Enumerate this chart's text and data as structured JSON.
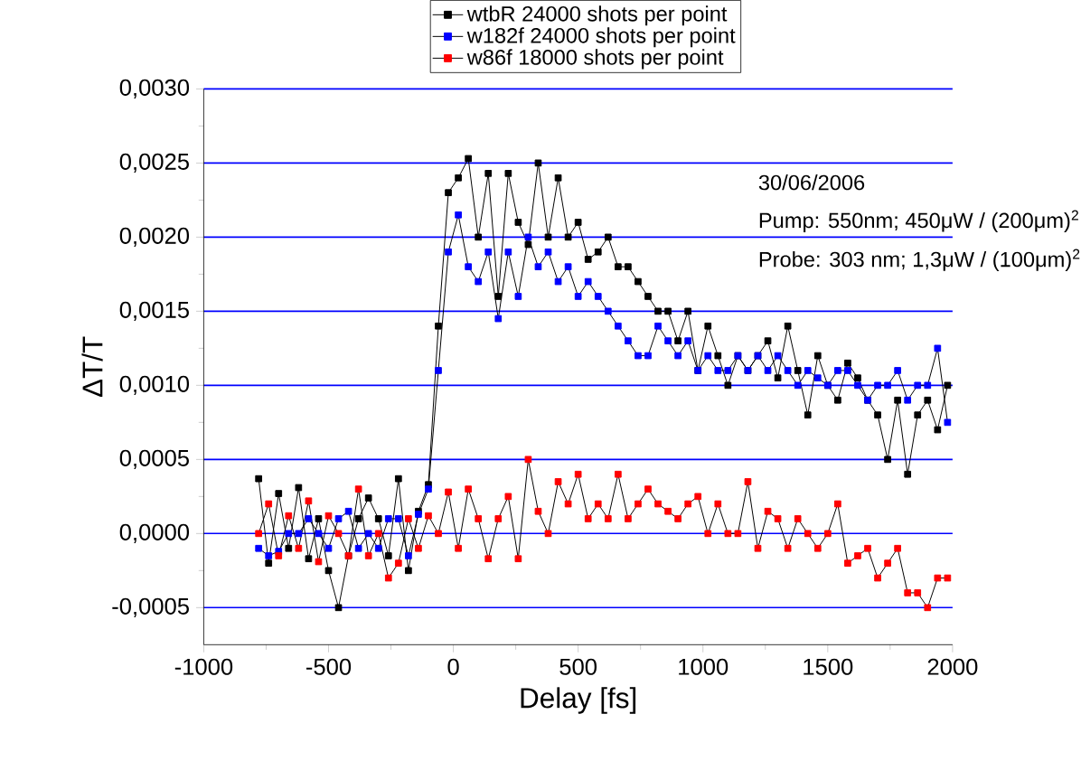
{
  "chart_data": {
    "type": "line",
    "xlabel": "Delay [fs]",
    "ylabel": "ΔT/T",
    "x": [
      -780,
      -740,
      -700,
      -660,
      -620,
      -580,
      -540,
      -500,
      -460,
      -420,
      -380,
      -340,
      -300,
      -260,
      -220,
      -180,
      -140,
      -100,
      -60,
      -20,
      20,
      60,
      100,
      140,
      180,
      220,
      260,
      300,
      340,
      380,
      420,
      460,
      500,
      540,
      580,
      620,
      660,
      700,
      740,
      780,
      820,
      860,
      900,
      940,
      980,
      1020,
      1060,
      1100,
      1140,
      1180,
      1220,
      1260,
      1300,
      1340,
      1380,
      1420,
      1460,
      1500,
      1540,
      1580,
      1620,
      1660,
      1700,
      1740,
      1780,
      1820,
      1860,
      1900,
      1940,
      1980
    ],
    "series": [
      {
        "name": "wtbR 24000 shots per point",
        "color": "#000000",
        "values": [
          0.00037,
          -0.0002,
          0.00027,
          -0.0001,
          0.00031,
          -0.00017,
          0.0001,
          -0.00025,
          -0.0005,
          -0.00015,
          0.0001,
          0.00024,
          0.0001,
          -0.00015,
          0.00037,
          -0.00025,
          0.00015,
          0.00033,
          0.0014,
          0.0023,
          0.0024,
          0.00253,
          0.002,
          0.00243,
          0.0016,
          0.00243,
          0.0021,
          0.00195,
          0.0025,
          0.002,
          0.0024,
          0.002,
          0.0021,
          0.00185,
          0.0019,
          0.002,
          0.0018,
          0.0018,
          0.0017,
          0.0016,
          0.0015,
          0.0015,
          0.0013,
          0.0015,
          0.0011,
          0.0014,
          0.0012,
          0.001,
          0.0012,
          0.0011,
          0.0012,
          0.0013,
          0.00105,
          0.0014,
          0.0011,
          0.0008,
          0.0012,
          0.001,
          0.0009,
          0.00115,
          0.00105,
          0.0009,
          0.0008,
          0.0005,
          0.0009,
          0.0004,
          0.0008,
          0.0009,
          0.0007,
          0.001
        ]
      },
      {
        "name": "w182f 24000 shots per point",
        "color": "#0000ff",
        "values": [
          -0.0001,
          -0.00015,
          -0.00012,
          0.0,
          0.0,
          0.0001,
          0.0,
          -0.0001,
          0.0001,
          0.00015,
          -0.0001,
          0.0,
          -0.0001,
          0.0001,
          0.0001,
          -0.00015,
          0.00013,
          0.0003,
          0.0011,
          0.0019,
          0.00215,
          0.0018,
          0.0017,
          0.0019,
          0.00145,
          0.0019,
          0.0016,
          0.002,
          0.0018,
          0.0019,
          0.0017,
          0.0018,
          0.0016,
          0.0017,
          0.0016,
          0.0015,
          0.0014,
          0.0013,
          0.0012,
          0.0012,
          0.0014,
          0.0013,
          0.0012,
          0.0013,
          0.0011,
          0.0012,
          0.0011,
          0.0011,
          0.0012,
          0.0011,
          0.0012,
          0.0011,
          0.0012,
          0.0011,
          0.001,
          0.0011,
          0.00105,
          0.001,
          0.0011,
          0.0011,
          0.001,
          0.0009,
          0.001,
          0.001,
          0.0011,
          0.0009,
          0.001,
          0.001,
          0.00125,
          0.00075
        ]
      },
      {
        "name": "w86f 18000 shots per point",
        "color": "#ff0000",
        "values": [
          0.0,
          0.0002,
          -0.00015,
          0.00012,
          -0.0001,
          0.00022,
          -0.00019,
          0.00012,
          0.0,
          -0.00015,
          0.0003,
          -0.00015,
          0.0,
          -0.0003,
          -0.0002,
          0.0001,
          -0.0001,
          0.00012,
          0.0,
          0.00028,
          -0.0001,
          0.0003,
          0.0001,
          -0.00017,
          0.0001,
          0.00025,
          -0.00017,
          0.0005,
          0.00015,
          0.0,
          0.00035,
          0.0002,
          0.0004,
          0.0001,
          0.0002,
          0.0001,
          0.0004,
          0.0001,
          0.0002,
          0.0003,
          0.0002,
          0.00015,
          0.0001,
          0.0002,
          0.00025,
          0.0,
          0.0002,
          0.0,
          0.0,
          0.00035,
          -0.0001,
          0.00015,
          0.0001,
          -0.0001,
          0.0001,
          0.0,
          -0.0001,
          0.0,
          0.0002,
          -0.0002,
          -0.00015,
          -0.0001,
          -0.0003,
          -0.0002,
          -0.0001,
          -0.0004,
          -0.0004,
          -0.0005,
          -0.0003,
          -0.0003
        ]
      }
    ],
    "xlim": [
      -1000,
      2000
    ],
    "xticks": [
      -1000,
      -500,
      0,
      500,
      1000,
      1500,
      2000
    ],
    "ylim": [
      -0.00075,
      0.003
    ],
    "yticks": [
      {
        "value": -0.0005,
        "label": "-0,0005"
      },
      {
        "value": 0,
        "label": "0,0000"
      },
      {
        "value": 0.0005,
        "label": "0,0005"
      },
      {
        "value": 0.001,
        "label": "0,0010"
      },
      {
        "value": 0.0015,
        "label": "0,0015"
      },
      {
        "value": 0.002,
        "label": "0,0020"
      },
      {
        "value": 0.0025,
        "label": "0,0025"
      },
      {
        "value": 0.003,
        "label": "0,0030"
      }
    ],
    "annotations": [
      "30/06/2006",
      "Pump: 550nm; 450μW / (200μm)$^{2}$",
      "Probe: 303 nm; 1,3μW / (100μm)$^{2}$"
    ],
    "grid": "y",
    "legend": "top",
    "marker": "square",
    "line_style": "solid"
  }
}
